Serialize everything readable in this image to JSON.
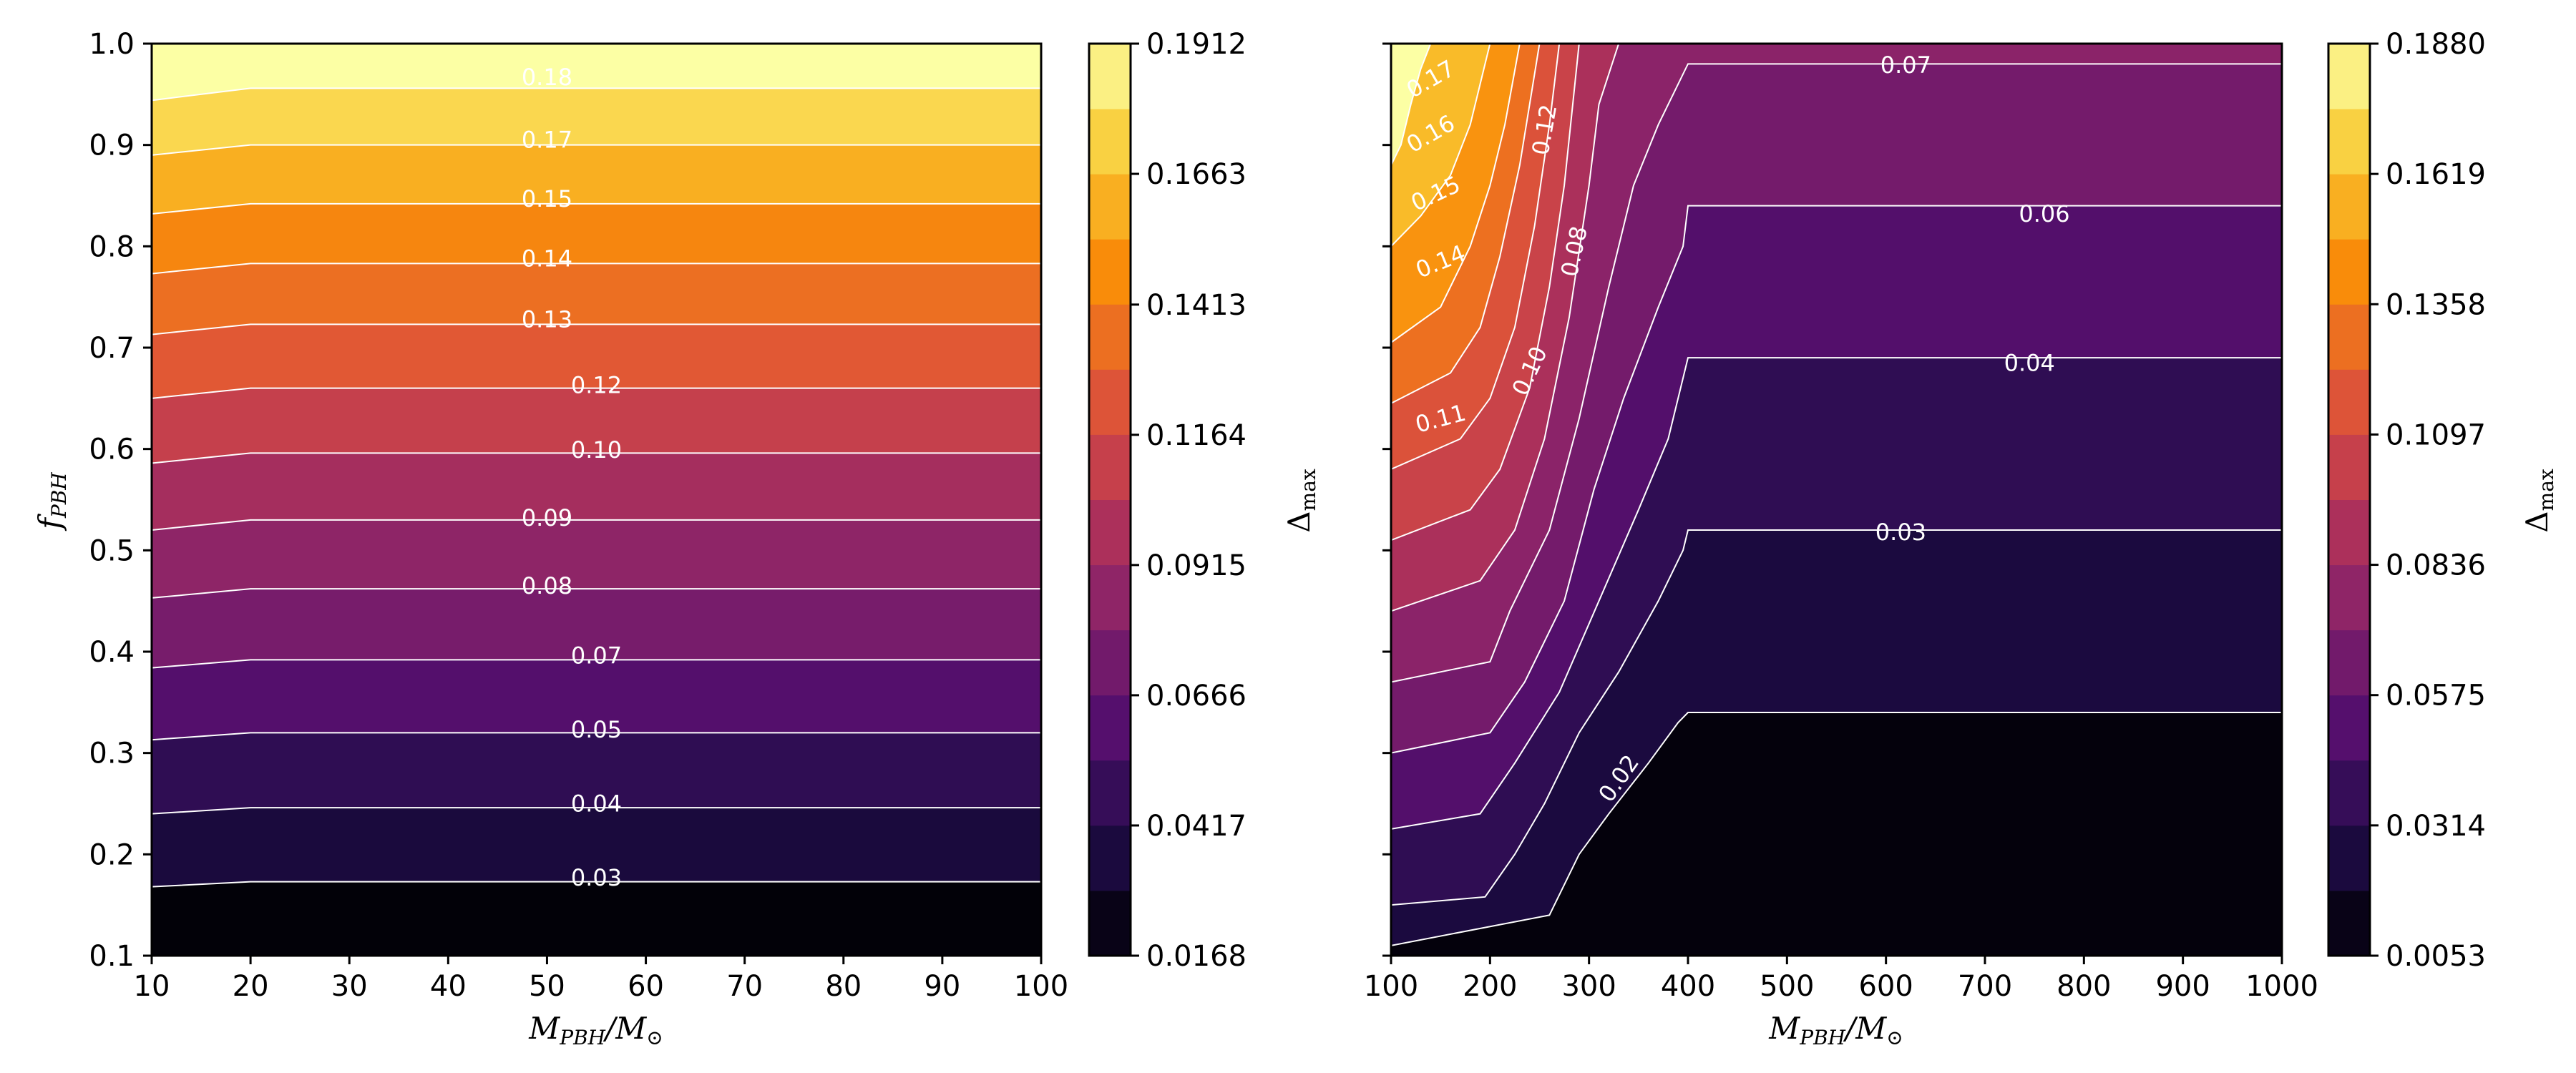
{
  "chart_data": [
    {
      "type": "contour",
      "xlabel": "M_PBH/M_⊙",
      "ylabel": "f_PBH",
      "xlim": [
        10,
        100
      ],
      "ylim": [
        0.1,
        1.0
      ],
      "x_ticks": [
        "10",
        "20",
        "30",
        "40",
        "50",
        "60",
        "70",
        "80",
        "90",
        "100"
      ],
      "y_ticks": [
        "0.1",
        "0.2",
        "0.3",
        "0.4",
        "0.5",
        "0.6",
        "0.7",
        "0.8",
        "0.9",
        "1.0"
      ],
      "colorbar_label": "Δ_max",
      "colorbar_ticks": [
        "0.0168",
        "0.0417",
        "0.0666",
        "0.0915",
        "0.1164",
        "0.1413",
        "0.1663",
        "0.1912"
      ],
      "colorbar_range": [
        0.0168,
        0.1912
      ],
      "contour_labels": [
        {
          "text": "0.18",
          "x": 50,
          "y": 0.967
        },
        {
          "text": "0.17",
          "x": 50,
          "y": 0.905
        },
        {
          "text": "0.15",
          "x": 50,
          "y": 0.847
        },
        {
          "text": "0.14",
          "x": 50,
          "y": 0.788
        },
        {
          "text": "0.13",
          "x": 50,
          "y": 0.728
        },
        {
          "text": "0.12",
          "x": 55,
          "y": 0.663
        },
        {
          "text": "0.10",
          "x": 55,
          "y": 0.599
        },
        {
          "text": "0.09",
          "x": 50,
          "y": 0.532
        },
        {
          "text": "0.08",
          "x": 50,
          "y": 0.465
        },
        {
          "text": "0.07",
          "x": 55,
          "y": 0.396
        },
        {
          "text": "0.05",
          "x": 55,
          "y": 0.323
        },
        {
          "text": "0.04",
          "x": 55,
          "y": 0.25
        },
        {
          "text": "0.03",
          "x": 55,
          "y": 0.177
        }
      ],
      "series": [
        {
          "level": 0.18,
          "points": [
            [
              10,
              0.944
            ],
            [
              20,
              0.956
            ],
            [
              100,
              0.956
            ]
          ]
        },
        {
          "level": 0.17,
          "points": [
            [
              10,
              0.89
            ],
            [
              20,
              0.9
            ],
            [
              100,
              0.9
            ]
          ]
        },
        {
          "level": 0.15,
          "points": [
            [
              10,
              0.832
            ],
            [
              20,
              0.842
            ],
            [
              100,
              0.842
            ]
          ]
        },
        {
          "level": 0.14,
          "points": [
            [
              10,
              0.773
            ],
            [
              20,
              0.783
            ],
            [
              100,
              0.783
            ]
          ]
        },
        {
          "level": 0.13,
          "points": [
            [
              10,
              0.713
            ],
            [
              20,
              0.723
            ],
            [
              100,
              0.723
            ]
          ]
        },
        {
          "level": 0.12,
          "points": [
            [
              10,
              0.65
            ],
            [
              20,
              0.66
            ],
            [
              100,
              0.66
            ]
          ]
        },
        {
          "level": 0.1,
          "points": [
            [
              10,
              0.586
            ],
            [
              20,
              0.596
            ],
            [
              100,
              0.596
            ]
          ]
        },
        {
          "level": 0.09,
          "points": [
            [
              10,
              0.52
            ],
            [
              20,
              0.53
            ],
            [
              100,
              0.53
            ]
          ]
        },
        {
          "level": 0.08,
          "points": [
            [
              10,
              0.453
            ],
            [
              20,
              0.462
            ],
            [
              100,
              0.462
            ]
          ]
        },
        {
          "level": 0.07,
          "points": [
            [
              10,
              0.384
            ],
            [
              20,
              0.392
            ],
            [
              100,
              0.392
            ]
          ]
        },
        {
          "level": 0.05,
          "points": [
            [
              10,
              0.313
            ],
            [
              20,
              0.32
            ],
            [
              100,
              0.32
            ]
          ]
        },
        {
          "level": 0.04,
          "points": [
            [
              10,
              0.24
            ],
            [
              20,
              0.246
            ],
            [
              100,
              0.246
            ]
          ]
        },
        {
          "level": 0.03,
          "points": [
            [
              10,
              0.168
            ],
            [
              20,
              0.173
            ],
            [
              100,
              0.173
            ]
          ]
        }
      ]
    },
    {
      "type": "contour",
      "xlabel": "M_PBH/M_⊙",
      "xlim": [
        100,
        1000
      ],
      "ylim": [
        0.1,
        1.0
      ],
      "x_ticks": [
        "100",
        "200",
        "300",
        "400",
        "500",
        "600",
        "700",
        "800",
        "900",
        "1000"
      ],
      "colorbar_label": "Δ_max",
      "colorbar_ticks": [
        "0.0053",
        "0.0314",
        "0.0575",
        "0.0836",
        "0.1097",
        "0.1358",
        "0.1619",
        "0.1880"
      ],
      "colorbar_range": [
        0.0053,
        0.188
      ],
      "contour_labels": [
        {
          "text": "0.17",
          "x": 140,
          "y": 0.965,
          "rotation": -30
        },
        {
          "text": "0.16",
          "x": 140,
          "y": 0.911,
          "rotation": -30
        },
        {
          "text": "0.15",
          "x": 145,
          "y": 0.852,
          "rotation": -25
        },
        {
          "text": "0.14",
          "x": 150,
          "y": 0.785,
          "rotation": -22
        },
        {
          "text": "0.12",
          "x": 255,
          "y": 0.915,
          "rotation": -80
        },
        {
          "text": "0.08",
          "x": 285,
          "y": 0.795,
          "rotation": -78
        },
        {
          "text": "0.10",
          "x": 240,
          "y": 0.677,
          "rotation": -65
        },
        {
          "text": "0.11",
          "x": 150,
          "y": 0.63,
          "rotation": -15
        },
        {
          "text": "0.07",
          "x": 620,
          "y": 0.979,
          "rotation": 0
        },
        {
          "text": "0.06",
          "x": 760,
          "y": 0.832,
          "rotation": 0
        },
        {
          "text": "0.04",
          "x": 745,
          "y": 0.685,
          "rotation": 0
        },
        {
          "text": "0.03",
          "x": 615,
          "y": 0.518,
          "rotation": 0
        },
        {
          "text": "0.02",
          "x": 330,
          "y": 0.275,
          "rotation": -55
        }
      ],
      "series": [
        {
          "level": 0.17,
          "points": [
            [
              100,
              0.88
            ],
            [
              110,
              0.9
            ],
            [
              120,
              0.94
            ],
            [
              130,
              0.975
            ],
            [
              140,
              1.0
            ]
          ]
        },
        {
          "level": 0.15,
          "points": [
            [
              100,
              0.8
            ],
            [
              130,
              0.83
            ],
            [
              160,
              0.87
            ],
            [
              180,
              0.92
            ],
            [
              190,
              0.96
            ],
            [
              200,
              1.0
            ]
          ]
        },
        {
          "level": 0.14,
          "points": [
            [
              100,
              0.705
            ],
            [
              150,
              0.74
            ],
            [
              180,
              0.8
            ],
            [
              200,
              0.86
            ],
            [
              215,
              0.92
            ],
            [
              230,
              1.0
            ]
          ]
        },
        {
          "level": 0.12,
          "points": [
            [
              100,
              0.645
            ],
            [
              160,
              0.675
            ],
            [
              190,
              0.72
            ],
            [
              210,
              0.79
            ],
            [
              230,
              0.88
            ],
            [
              250,
              1.0
            ]
          ]
        },
        {
          "level": 0.11,
          "points": [
            [
              100,
              0.58
            ],
            [
              170,
              0.61
            ],
            [
              200,
              0.65
            ],
            [
              225,
              0.72
            ],
            [
              245,
              0.82
            ],
            [
              260,
              0.92
            ],
            [
              270,
              1.0
            ]
          ]
        },
        {
          "level": 0.1,
          "points": [
            [
              100,
              0.51
            ],
            [
              180,
              0.54
            ],
            [
              210,
              0.58
            ],
            [
              240,
              0.66
            ],
            [
              260,
              0.76
            ],
            [
              275,
              0.86
            ],
            [
              290,
              1.0
            ]
          ]
        },
        {
          "level": 0.08,
          "points": [
            [
              100,
              0.44
            ],
            [
              190,
              0.47
            ],
            [
              225,
              0.52
            ],
            [
              255,
              0.61
            ],
            [
              280,
              0.73
            ],
            [
              300,
              0.86
            ],
            [
              310,
              0.94
            ],
            [
              330,
              1.0
            ]
          ]
        },
        {
          "level": 0.07,
          "points": [
            [
              100,
              0.37
            ],
            [
              200,
              0.39
            ],
            [
              220,
              0.44
            ],
            [
              260,
              0.52
            ],
            [
              290,
              0.63
            ],
            [
              320,
              0.76
            ],
            [
              345,
              0.86
            ],
            [
              370,
              0.92
            ],
            [
              400,
              0.98
            ],
            [
              1000,
              0.98
            ]
          ]
        },
        {
          "level": 0.06,
          "points": [
            [
              100,
              0.3
            ],
            [
              200,
              0.32
            ],
            [
              235,
              0.37
            ],
            [
              275,
              0.45
            ],
            [
              305,
              0.56
            ],
            [
              335,
              0.65
            ],
            [
              370,
              0.74
            ],
            [
              395,
              0.8
            ],
            [
              400,
              0.84
            ],
            [
              1000,
              0.84
            ]
          ]
        },
        {
          "level": 0.04,
          "points": [
            [
              100,
              0.225
            ],
            [
              190,
              0.24
            ],
            [
              225,
              0.29
            ],
            [
              270,
              0.36
            ],
            [
              310,
              0.45
            ],
            [
              350,
              0.54
            ],
            [
              380,
              0.61
            ],
            [
              400,
              0.69
            ],
            [
              1000,
              0.69
            ]
          ]
        },
        {
          "level": 0.03,
          "points": [
            [
              100,
              0.15
            ],
            [
              195,
              0.158
            ],
            [
              225,
              0.2
            ],
            [
              255,
              0.25
            ],
            [
              290,
              0.32
            ],
            [
              330,
              0.38
            ],
            [
              370,
              0.45
            ],
            [
              395,
              0.5
            ],
            [
              400,
              0.52
            ],
            [
              1000,
              0.52
            ]
          ]
        },
        {
          "level": 0.02,
          "points": [
            [
              100,
              0.11
            ],
            [
              260,
              0.14
            ],
            [
              290,
              0.2
            ],
            [
              320,
              0.24
            ],
            [
              360,
              0.29
            ],
            [
              390,
              0.33
            ],
            [
              400,
              0.34
            ],
            [
              1000,
              0.34
            ]
          ]
        }
      ]
    }
  ]
}
